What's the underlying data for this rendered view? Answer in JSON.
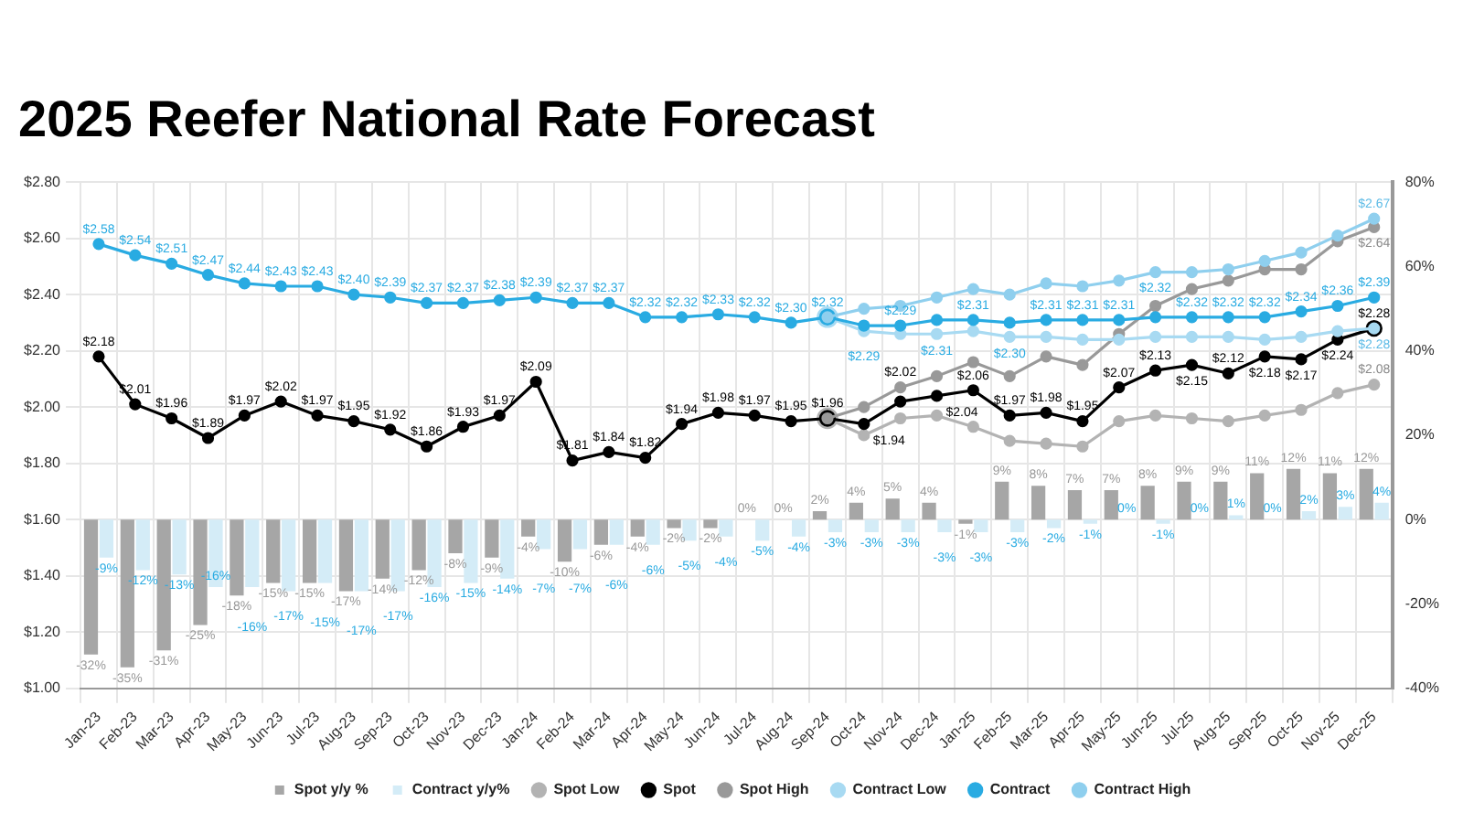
{
  "chart_data": {
    "type": "line",
    "title": "2025 Reefer National Rate Forecast",
    "categories": [
      "Jan-23",
      "Feb-23",
      "Mar-23",
      "Apr-23",
      "May-23",
      "Jun-23",
      "Jul-23",
      "Aug-23",
      "Sep-23",
      "Oct-23",
      "Nov-23",
      "Dec-23",
      "Jan-24",
      "Feb-24",
      "Mar-24",
      "Apr-24",
      "May-24",
      "Jun-24",
      "Jul-24",
      "Aug-24",
      "Sep-24",
      "Oct-24",
      "Nov-24",
      "Dec-24",
      "Jan-25",
      "Feb-25",
      "Mar-25",
      "Apr-25",
      "May-25",
      "Jun-25",
      "Jul-25",
      "Aug-25",
      "Sep-25",
      "Oct-25",
      "Nov-25",
      "Dec-25"
    ],
    "ylim": [
      1.0,
      2.8
    ],
    "yticks": [
      {
        "value": 1.0,
        "label": "$1.00"
      },
      {
        "value": 1.2,
        "label": "$1.20"
      },
      {
        "value": 1.4,
        "label": "$1.40"
      },
      {
        "value": 1.6,
        "label": "$1.60"
      },
      {
        "value": 1.8,
        "label": "$1.80"
      },
      {
        "value": 2.0,
        "label": "$2.00"
      },
      {
        "value": 2.2,
        "label": "$2.20"
      },
      {
        "value": 2.4,
        "label": "$2.40"
      },
      {
        "value": 2.6,
        "label": "$2.60"
      },
      {
        "value": 2.8,
        "label": "$2.80"
      }
    ],
    "y2lim": [
      -40,
      80
    ],
    "y2ticks": [
      {
        "value": -40,
        "label": "-40%"
      },
      {
        "value": -20,
        "label": "-20%"
      },
      {
        "value": 0,
        "label": "0%"
      },
      {
        "value": 20,
        "label": "20%"
      },
      {
        "value": 40,
        "label": "40%"
      },
      {
        "value": 60,
        "label": "60%"
      },
      {
        "value": 80,
        "label": "80%"
      }
    ],
    "grid": true,
    "legend": "bottom",
    "marker": "circle",
    "series": [
      {
        "name": "Spot y/y %",
        "type": "bar",
        "axis": "y2",
        "color": "#a6a6a6",
        "values": [
          -32,
          -35,
          -31,
          -25,
          -18,
          -15,
          -15,
          -17,
          -14,
          -12,
          -8,
          -9,
          -4,
          -10,
          -6,
          -4,
          -2,
          -2,
          0,
          0,
          2,
          4,
          5,
          4,
          -1,
          9,
          8,
          7,
          7,
          8,
          9,
          9,
          11,
          12,
          11,
          12
        ],
        "value_labels": [
          "-32%",
          "-35%",
          "-31%",
          "-25%",
          "-18%",
          "-15%",
          "-15%",
          "-17%",
          "-14%",
          "-12%",
          "-8%",
          "-9%",
          "-4%",
          "-10%",
          "-6%",
          "-4%",
          "-2%",
          "-2%",
          "0%",
          "0%",
          "2%",
          "4%",
          "5%",
          "4%",
          "-1%",
          "9%",
          "8%",
          "7%",
          "7%",
          "8%",
          "9%",
          "9%",
          "11%",
          "12%",
          "11%",
          "12%"
        ]
      },
      {
        "name": "Contract y/y%",
        "type": "bar",
        "axis": "y2",
        "color": "#d4ecf7",
        "values": [
          -9,
          -12,
          -13,
          -16,
          -16,
          -17,
          -15,
          -17,
          -17,
          -16,
          -15,
          -14,
          -7,
          -7,
          -6,
          -6,
          -5,
          -4,
          -5,
          -4,
          -3,
          -3,
          -3,
          -3,
          -3,
          -3,
          -2,
          -1,
          0,
          -1,
          0,
          1,
          0,
          2,
          3,
          4
        ],
        "value_labels": [
          "-9%",
          "-12%",
          "-13%",
          "-16%",
          "-16%",
          "-17%",
          "-15%",
          "-17%",
          "-17%",
          "-16%",
          "-15%",
          "-14%",
          "-7%",
          "-7%",
          "-6%",
          "-6%",
          "-5%",
          "-4%",
          "-5%",
          "-4%",
          "-3%",
          "-3%",
          "-3%",
          "-3%",
          "-3%",
          "-3%",
          "-2%",
          "-1%",
          "0%",
          "-1%",
          "0%",
          "1%",
          "0%",
          "2%",
          "3%",
          "4%"
        ]
      },
      {
        "name": "Spot Low",
        "color": "#b3b3b3",
        "values": [
          null,
          null,
          null,
          null,
          null,
          null,
          null,
          null,
          null,
          null,
          null,
          null,
          null,
          null,
          null,
          null,
          null,
          null,
          null,
          null,
          1.96,
          1.9,
          1.96,
          1.97,
          1.93,
          1.88,
          1.87,
          1.86,
          1.95,
          1.97,
          1.96,
          1.95,
          1.97,
          1.99,
          2.05,
          2.08
        ],
        "value_labels": [
          null,
          null,
          null,
          null,
          null,
          null,
          null,
          null,
          null,
          null,
          null,
          null,
          null,
          null,
          null,
          null,
          null,
          null,
          null,
          null,
          null,
          null,
          null,
          null,
          null,
          null,
          null,
          null,
          null,
          null,
          null,
          null,
          null,
          null,
          null,
          "$2.08"
        ]
      },
      {
        "name": "Spot",
        "color": "#000000",
        "values": [
          2.18,
          2.01,
          1.96,
          1.89,
          1.97,
          2.02,
          1.97,
          1.95,
          1.92,
          1.86,
          1.93,
          1.97,
          2.09,
          1.81,
          1.84,
          1.82,
          1.94,
          1.98,
          1.97,
          1.95,
          1.96,
          1.94,
          2.02,
          2.04,
          2.06,
          1.97,
          1.98,
          1.95,
          2.07,
          2.13,
          2.15,
          2.12,
          2.18,
          2.17,
          2.24,
          2.28
        ],
        "value_labels": [
          "$2.18",
          "$2.01",
          "$1.96",
          "$1.89",
          "$1.97",
          "$2.02",
          "$1.97",
          "$1.95",
          "$1.92",
          "$1.86",
          "$1.93",
          "$1.97",
          "$2.09",
          "$1.81",
          "$1.84",
          "$1.82",
          "$1.94",
          "$1.98",
          "$1.97",
          "$1.95",
          "$1.96",
          "$1.94",
          "$2.02",
          "$2.04",
          "$2.06",
          "$1.97",
          "$1.98",
          "$1.95",
          "$2.07",
          "$2.13",
          "$2.15",
          "$2.12",
          "$2.18",
          "$2.17",
          "$2.24",
          "$2.28"
        ]
      },
      {
        "name": "Spot High",
        "color": "#999999",
        "values": [
          null,
          null,
          null,
          null,
          null,
          null,
          null,
          null,
          null,
          null,
          null,
          null,
          null,
          null,
          null,
          null,
          null,
          null,
          null,
          null,
          1.96,
          2.0,
          2.07,
          2.11,
          2.16,
          2.11,
          2.18,
          2.15,
          2.26,
          2.36,
          2.42,
          2.45,
          2.49,
          2.49,
          2.59,
          2.64
        ],
        "value_labels": [
          null,
          null,
          null,
          null,
          null,
          null,
          null,
          null,
          null,
          null,
          null,
          null,
          null,
          null,
          null,
          null,
          null,
          null,
          null,
          null,
          null,
          null,
          null,
          null,
          null,
          null,
          null,
          null,
          null,
          null,
          null,
          null,
          null,
          null,
          null,
          "$2.64"
        ]
      },
      {
        "name": "Contract Low",
        "color": "#a8daf2",
        "values": [
          null,
          null,
          null,
          null,
          null,
          null,
          null,
          null,
          null,
          null,
          null,
          null,
          null,
          null,
          null,
          null,
          null,
          null,
          null,
          null,
          2.32,
          2.27,
          2.26,
          2.26,
          2.27,
          2.25,
          2.25,
          2.24,
          2.24,
          2.25,
          2.25,
          2.25,
          2.24,
          2.25,
          2.27,
          2.28
        ],
        "value_labels": [
          null,
          null,
          null,
          null,
          null,
          null,
          null,
          null,
          null,
          null,
          null,
          null,
          null,
          null,
          null,
          null,
          null,
          null,
          null,
          null,
          null,
          null,
          null,
          null,
          null,
          null,
          null,
          null,
          null,
          null,
          null,
          null,
          null,
          null,
          null,
          "$2.28"
        ]
      },
      {
        "name": "Contract",
        "color": "#29abe2",
        "values": [
          2.58,
          2.54,
          2.51,
          2.47,
          2.44,
          2.43,
          2.43,
          2.4,
          2.39,
          2.37,
          2.37,
          2.38,
          2.39,
          2.37,
          2.37,
          2.32,
          2.32,
          2.33,
          2.32,
          2.3,
          2.32,
          2.29,
          2.29,
          2.31,
          2.31,
          2.3,
          2.31,
          2.31,
          2.31,
          2.32,
          2.32,
          2.32,
          2.32,
          2.34,
          2.36,
          2.39
        ],
        "value_labels": [
          "$2.58",
          "$2.54",
          "$2.51",
          "$2.47",
          "$2.44",
          "$2.43",
          "$2.43",
          "$2.40",
          "$2.39",
          "$2.37",
          "$2.37",
          "$2.38",
          "$2.39",
          "$2.37",
          "$2.37",
          "$2.32",
          "$2.32",
          "$2.33",
          "$2.32",
          "$2.30",
          "$2.32",
          "$2.29",
          "$2.29",
          "$2.31",
          "$2.31",
          "$2.30",
          "$2.31",
          "$2.31",
          "$2.31",
          "$2.32",
          "$2.32",
          "$2.32",
          "$2.32",
          "$2.34",
          "$2.36",
          "$2.39"
        ]
      },
      {
        "name": "Contract High",
        "color": "#8fcfee",
        "values": [
          null,
          null,
          null,
          null,
          null,
          null,
          null,
          null,
          null,
          null,
          null,
          null,
          null,
          null,
          null,
          null,
          null,
          null,
          null,
          null,
          2.32,
          2.35,
          2.36,
          2.39,
          2.42,
          2.4,
          2.44,
          2.43,
          2.45,
          2.48,
          2.48,
          2.49,
          2.52,
          2.55,
          2.61,
          2.67
        ],
        "value_labels": [
          null,
          null,
          null,
          null,
          null,
          null,
          null,
          null,
          null,
          null,
          null,
          null,
          null,
          null,
          null,
          null,
          null,
          null,
          null,
          null,
          null,
          null,
          null,
          null,
          null,
          null,
          null,
          null,
          null,
          null,
          null,
          null,
          null,
          null,
          null,
          "$2.67"
        ]
      }
    ]
  }
}
